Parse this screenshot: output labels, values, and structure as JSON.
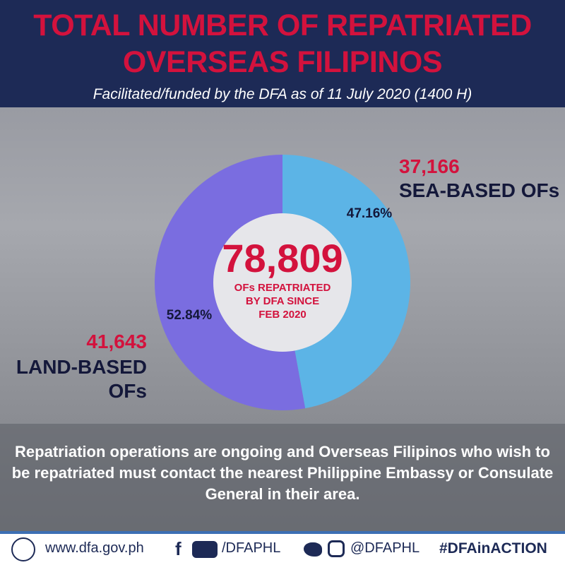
{
  "header": {
    "title": "TOTAL NUMBER OF REPATRIATED OVERSEAS FILIPINOS",
    "subtitle": "Facilitated/funded by the DFA as of 11 July 2020 (1400 H)"
  },
  "chart_data": {
    "type": "donut",
    "categories": [
      "SEA-BASED OFs",
      "LAND-BASED OFs"
    ],
    "values": [
      47.16,
      52.84
    ],
    "value_labels": [
      "47.16%",
      "52.84%"
    ],
    "counts": [
      37166,
      41643
    ],
    "count_labels": [
      "37,166",
      "41,643"
    ],
    "colors": [
      "#5cb4e6",
      "#7a6de0"
    ],
    "total": 78809,
    "total_label": "78,809",
    "center_caption": "OFs REPATRIATED BY DFA SINCE FEB 2020"
  },
  "note": "Repatriation operations are ongoing and Overseas Filipinos who wish to be repatriated must contact the nearest Philippine Embassy or Consulate General in their area.",
  "footer": {
    "website": "www.dfa.gov.ph",
    "facebook_youtube": "/DFAPHL",
    "twitter_instagram": "@DFAPHL",
    "hashtag": "#DFAinACTION"
  }
}
